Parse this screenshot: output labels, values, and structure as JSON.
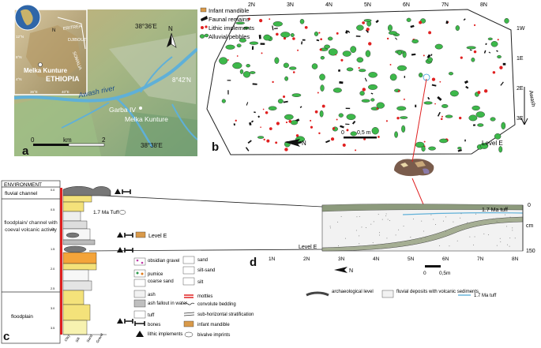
{
  "panels": {
    "a": {
      "letter": "a",
      "lat_top": "38°36'E",
      "lat_bottom": "38°38'E",
      "lon": "8°42'N",
      "north": "N",
      "country": "ETHIOPIA",
      "place": "Melka Kunture",
      "place2": "Melka Kunture",
      "site": "Garba IV",
      "river": "Awash river",
      "inset_labels": [
        "ERITREA",
        "DJIBOUTI",
        "SOMALIA"
      ],
      "inset_coords": [
        "12°N",
        "8°N",
        "4°N",
        "36°E",
        "40°E"
      ],
      "scale_start": "0",
      "scale_unit": "km",
      "scale_end": "2",
      "colors": {
        "water": "#5fb0d8",
        "terrain_light": "#d9c28e",
        "terrain_green": "#8db07a"
      }
    },
    "b": {
      "letter": "b",
      "legend": [
        {
          "label": "Infant mandible",
          "icon": "mandible-icon"
        },
        {
          "label": "Faunal remains",
          "icon": "bone-icon"
        },
        {
          "label": "Lithic implements",
          "icon": "lithic-icon"
        },
        {
          "label": "Alluvial pebbles",
          "icon": "pebble-icon"
        }
      ],
      "top_grid": [
        "2N",
        "3N",
        "4N",
        "5N",
        "6N",
        "7N",
        "8N"
      ],
      "right_grid": [
        "1W",
        "1E",
        "2E",
        "3E"
      ],
      "scale_start": "0",
      "scale_end": "0,5 m",
      "north": "N",
      "river_label": "Awash",
      "level": "Level E",
      "colors": {
        "pebble": "#3db84a",
        "lithic": "#e02020",
        "bone": "#111111"
      }
    },
    "c": {
      "letter": "c",
      "header": "ENVIRONMENT",
      "environments": [
        "fluvial channel",
        "floodplain/ channel with coeval volcanic activity",
        "floodplain"
      ],
      "depth_ticks": [
        "0.0",
        "0.5",
        "1.0",
        "1.5",
        "2.0",
        "2.5",
        "3.0",
        "3.5"
      ],
      "tuff_label": "1.7 Ma Tuff",
      "level_label": "Level E",
      "grain_labels": [
        "Clay",
        "Silt",
        "Sand",
        "Gravel"
      ],
      "legend_left": [
        {
          "label": "obsidian gravel",
          "icon": "obsidian-gravel-icon"
        },
        {
          "label": "pumice",
          "icon": "pumice-icon"
        },
        {
          "label": "coarse sand",
          "icon": "coarse-sand-icon"
        },
        {
          "label": "ash",
          "icon": "ash-icon"
        },
        {
          "label": "ash fallout in water",
          "icon": "ash-fallout-icon"
        },
        {
          "label": "tuff",
          "icon": "tuff-icon"
        },
        {
          "label": "bones",
          "icon": "bone-icon"
        },
        {
          "label": "lithic implements",
          "icon": "lithic-triangle-icon"
        }
      ],
      "legend_right": [
        {
          "label": "sand",
          "icon": "sand-icon"
        },
        {
          "label": "silt-sand",
          "icon": "silt-sand-icon"
        },
        {
          "label": "silt",
          "icon": "silt-icon"
        },
        {
          "label": "mottles",
          "icon": "mottles-icon"
        },
        {
          "label": "convolute bedding",
          "icon": "convolute-icon"
        },
        {
          "label": "sub-horizontal stratification",
          "icon": "stratification-icon"
        },
        {
          "label": "infant mandible",
          "icon": "mandible-icon"
        },
        {
          "label": "bivalve imprints",
          "icon": "bivalve-icon"
        }
      ]
    },
    "d": {
      "letter": "d",
      "tuff_label": "1.7 Ma tuff",
      "level_label": "Level E",
      "depth_top": "0",
      "depth_unit": "cm",
      "depth_bottom": "150",
      "grid": [
        "1N",
        "2N",
        "3N",
        "4N",
        "5N",
        "6N",
        "7N",
        "8N"
      ],
      "north": "N",
      "scale_start": "0",
      "scale_end": "0,5m",
      "legend": [
        {
          "label": "archaeological level",
          "icon": "arch-level-icon"
        },
        {
          "label": "fluvial deposits with volcanic sediments",
          "icon": "fluvial-icon"
        },
        {
          "label": "1.7 Ma tuff",
          "icon": "tuff-line-icon"
        }
      ]
    }
  }
}
